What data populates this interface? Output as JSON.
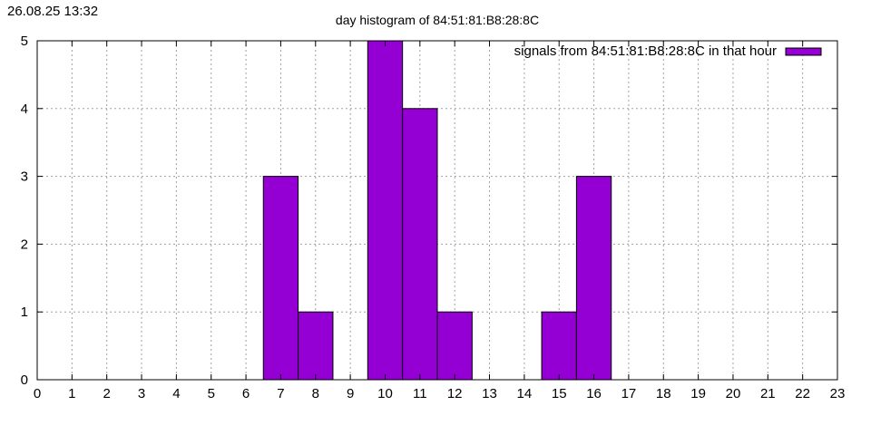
{
  "timestamp": "26.08.25 13:32",
  "chart_data": {
    "type": "bar",
    "title": "day histogram of 84:51:81:B8:28:8C",
    "xlabel": "",
    "ylabel": "",
    "x": [
      0,
      1,
      2,
      3,
      4,
      5,
      6,
      7,
      8,
      9,
      10,
      11,
      12,
      13,
      14,
      15,
      16,
      17,
      18,
      19,
      20,
      21,
      22,
      23
    ],
    "series": [
      {
        "name": "signals from 84:51:81:B8:28:8C in that hour",
        "color": "#9400d3",
        "values": [
          0,
          0,
          0,
          0,
          0,
          0,
          0,
          3,
          1,
          0,
          5,
          4,
          1,
          0,
          0,
          1,
          3,
          0,
          0,
          0,
          0,
          0,
          0,
          0
        ]
      }
    ],
    "xlim": [
      0,
      23
    ],
    "ylim": [
      0,
      5
    ],
    "xticks": [
      "0",
      "1",
      "2",
      "3",
      "4",
      "5",
      "6",
      "7",
      "8",
      "9",
      "10",
      "11",
      "12",
      "13",
      "14",
      "15",
      "16",
      "17",
      "18",
      "19",
      "20",
      "21",
      "22",
      "23"
    ],
    "yticks": [
      "0",
      "1",
      "2",
      "3",
      "4",
      "5"
    ],
    "grid": true,
    "legend_position": "top-right"
  }
}
